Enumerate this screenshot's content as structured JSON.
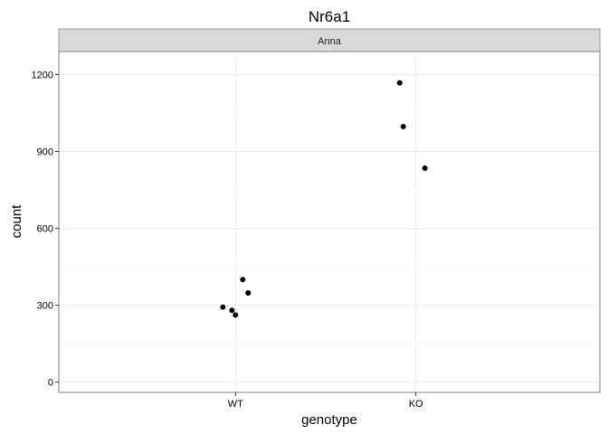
{
  "chart_data": {
    "type": "scatter",
    "title": "Nr6a1",
    "facet": "Anna",
    "xlabel": "genotype",
    "ylabel": "count",
    "categories": [
      "WT",
      "KO"
    ],
    "ylim": [
      -40,
      1290
    ],
    "yticks": [
      0,
      300,
      600,
      900,
      1200
    ],
    "grid": true,
    "points": [
      {
        "x": "WT",
        "jitter": 0.04,
        "y": 400
      },
      {
        "x": "WT",
        "jitter": 0.07,
        "y": 348
      },
      {
        "x": "WT",
        "jitter": -0.07,
        "y": 293
      },
      {
        "x": "WT",
        "jitter": -0.02,
        "y": 280
      },
      {
        "x": "WT",
        "jitter": 0.0,
        "y": 262
      },
      {
        "x": "KO",
        "jitter": -0.09,
        "y": 1168
      },
      {
        "x": "KO",
        "jitter": -0.07,
        "y": 997
      },
      {
        "x": "KO",
        "jitter": 0.05,
        "y": 835
      }
    ],
    "point_color": "#000000"
  }
}
